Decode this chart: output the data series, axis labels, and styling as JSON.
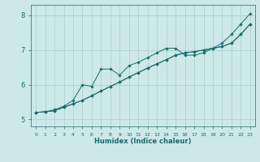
{
  "xlabel": "Humidex (Indice chaleur)",
  "xlim": [
    -0.5,
    23.5
  ],
  "ylim": [
    4.8,
    8.3
  ],
  "yticks": [
    5,
    6,
    7,
    8
  ],
  "xticks": [
    0,
    1,
    2,
    3,
    4,
    5,
    6,
    7,
    8,
    9,
    10,
    11,
    12,
    13,
    14,
    15,
    16,
    17,
    18,
    19,
    20,
    21,
    22,
    23
  ],
  "bg_color": "#cce8e8",
  "line_color": "#1a6b6b",
  "grid_color": "#aacece",
  "lower_y": [
    5.2,
    5.22,
    5.25,
    5.35,
    5.45,
    5.55,
    5.68,
    5.82,
    5.95,
    6.08,
    6.22,
    6.35,
    6.48,
    6.6,
    6.72,
    6.85,
    6.92,
    6.95,
    7.0,
    7.05,
    7.1,
    7.2,
    7.45,
    7.75
  ],
  "upper_y": [
    5.2,
    5.22,
    5.28,
    5.38,
    5.55,
    6.0,
    5.95,
    6.45,
    6.45,
    6.28,
    6.55,
    6.65,
    6.78,
    6.92,
    7.05,
    7.05,
    6.85,
    6.85,
    6.92,
    7.05,
    7.2,
    7.45,
    7.75,
    8.05
  ],
  "mid_y": [
    5.2,
    5.22,
    5.25,
    5.35,
    5.45,
    5.55,
    5.68,
    5.82,
    5.95,
    6.08,
    6.22,
    6.35,
    6.48,
    6.6,
    6.72,
    6.85,
    6.92,
    6.95,
    7.0,
    7.05,
    7.1,
    7.2,
    7.45,
    7.75
  ]
}
